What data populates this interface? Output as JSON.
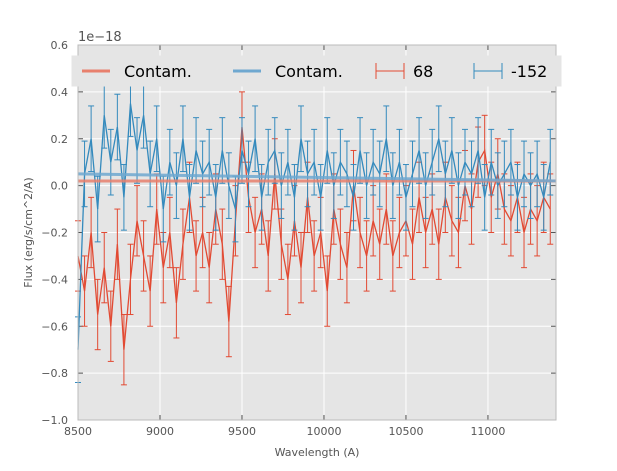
{
  "chart_data": {
    "type": "line",
    "title": "",
    "xlabel": "Wavelength (A)",
    "ylabel": "Flux (erg/s/cm^2/A)",
    "offset_label": "1e−18",
    "xlim": [
      8500,
      11415
    ],
    "ylim": [
      -1.0,
      0.6
    ],
    "xticks": [
      8500,
      9000,
      9500,
      10000,
      10500,
      11000
    ],
    "yticks": [
      -1.0,
      -0.8,
      -0.6,
      -0.4,
      -0.2,
      0.0,
      0.2,
      0.4,
      0.6
    ],
    "ytick_labels": [
      "−1.0",
      "−0.8",
      "−0.6",
      "−0.4",
      "−0.2",
      "0.0",
      "0.2",
      "0.4",
      "0.6"
    ],
    "grid": true,
    "legend_placement": "top",
    "x_start": 8500,
    "x_step": 40,
    "series": [
      {
        "name": "68",
        "kind": "errorbar",
        "color": "#e24a33",
        "yerr": 0.15,
        "values": [
          -0.3,
          -0.45,
          -0.2,
          -0.55,
          -0.35,
          -0.6,
          -0.25,
          -0.7,
          -0.4,
          -0.15,
          -0.3,
          -0.45,
          -0.1,
          -0.35,
          -0.2,
          -0.5,
          -0.25,
          -0.05,
          -0.3,
          -0.2,
          -0.35,
          -0.1,
          -0.25,
          -0.58,
          -0.15,
          0.25,
          -0.05,
          -0.2,
          -0.1,
          -0.3,
          0.05,
          -0.25,
          -0.4,
          -0.15,
          -0.35,
          -0.05,
          -0.3,
          -0.2,
          -0.45,
          -0.1,
          -0.25,
          -0.35,
          0.0,
          -0.2,
          -0.3,
          -0.15,
          -0.25,
          -0.1,
          -0.3,
          -0.2,
          -0.15,
          -0.25,
          -0.05,
          -0.2,
          -0.1,
          -0.25,
          -0.05,
          -0.15,
          -0.2,
          0.0,
          -0.1,
          0.1,
          0.15,
          -0.05,
          0.05,
          -0.1,
          -0.15,
          -0.05,
          -0.2,
          -0.1,
          -0.15,
          -0.05,
          -0.1
        ]
      },
      {
        "name": "-152",
        "kind": "errorbar",
        "color": "#348abd",
        "yerr": 0.14,
        "values": [
          -0.7,
          0.05,
          0.2,
          -0.1,
          0.3,
          0.1,
          0.25,
          -0.05,
          0.35,
          0.15,
          0.3,
          0.05,
          0.2,
          -0.1,
          0.1,
          0.0,
          0.2,
          -0.05,
          0.15,
          0.05,
          0.1,
          -0.05,
          0.15,
          0.0,
          -0.1,
          0.15,
          0.05,
          0.2,
          -0.05,
          0.1,
          0.15,
          0.0,
          0.1,
          -0.05,
          0.2,
          0.05,
          0.1,
          -0.05,
          0.15,
          0.0,
          0.1,
          0.05,
          -0.05,
          0.15,
          0.0,
          0.1,
          0.05,
          0.2,
          0.0,
          0.1,
          -0.05,
          0.05,
          0.15,
          0.0,
          0.1,
          0.2,
          0.05,
          0.15,
          0.0,
          0.1,
          0.05,
          0.15,
          -0.05,
          0.1,
          0.0,
          0.05,
          0.1,
          -0.05,
          0.05,
          0.0,
          0.05,
          -0.05,
          0.1
        ]
      },
      {
        "name": "Contam.",
        "kind": "line",
        "color": "#e8806d",
        "points": [
          [
            8500,
            0.02
          ],
          [
            11415,
            0.02
          ]
        ]
      },
      {
        "name": "Contam.",
        "kind": "line",
        "color": "#6fa8d0",
        "points": [
          [
            8500,
            0.05
          ],
          [
            11415,
            0.02
          ]
        ]
      }
    ],
    "legend": [
      "Contam.",
      "Contam.",
      "68",
      "-152"
    ]
  }
}
